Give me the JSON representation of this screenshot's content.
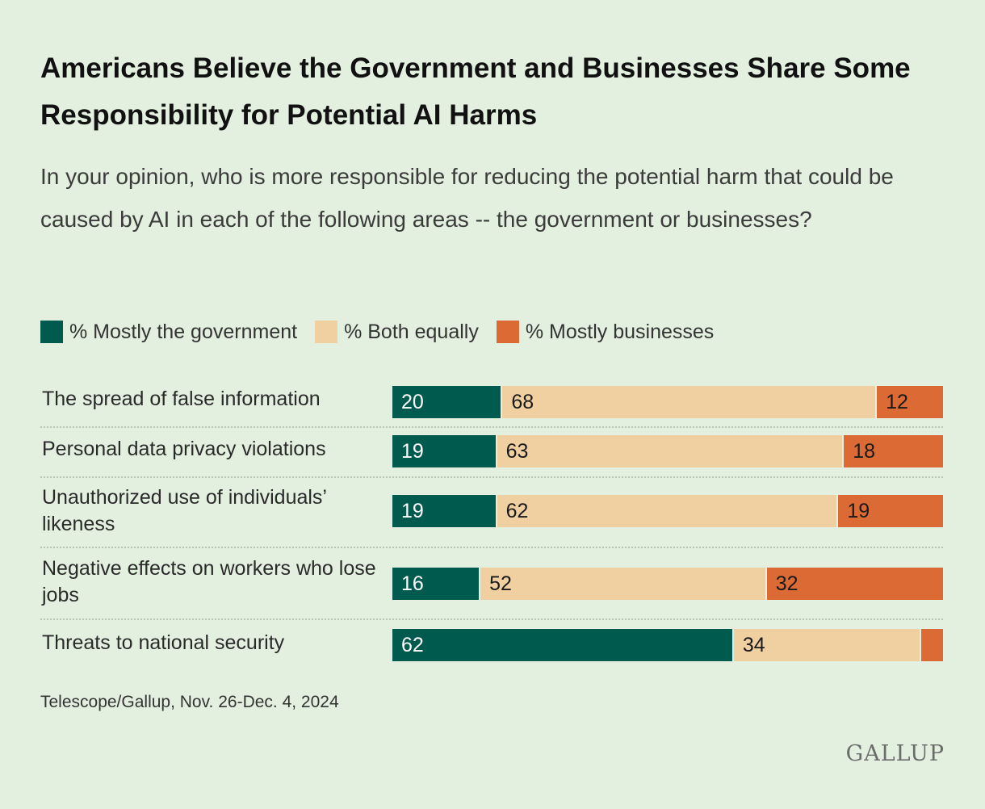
{
  "title": "Americans Believe the Government and Businesses Share Some Responsibility for Potential AI Harms",
  "subtitle": "In your opinion, who is more responsible for reducing the potential harm that could be caused by AI in each of the following areas -- the government or businesses?",
  "source": "Telescope/Gallup, Nov. 26-Dec. 4, 2024",
  "logo": "GALLUP",
  "colors": {
    "government": "#005a4e",
    "both": "#f0d0a1",
    "businesses": "#dc6a34"
  },
  "chart_data": {
    "type": "bar",
    "stacked": true,
    "orientation": "horizontal",
    "categories": [
      "The spread of false information",
      "Personal data privacy violations",
      "Unauthorized use of individuals’ likeness",
      "Negative effects on workers who lose jobs",
      "Threats to national security"
    ],
    "series": [
      {
        "name": "% Mostly the government",
        "values": [
          20,
          19,
          19,
          16,
          62
        ]
      },
      {
        "name": "% Both equally",
        "values": [
          68,
          63,
          62,
          52,
          34
        ]
      },
      {
        "name": "% Mostly businesses",
        "values": [
          12,
          18,
          19,
          32,
          4
        ]
      }
    ],
    "value_labels": [
      [
        "20",
        "19",
        "19",
        "16",
        "62"
      ],
      [
        "68",
        "63",
        "62",
        "52",
        "34"
      ],
      [
        "12",
        "18",
        "19",
        "32",
        ""
      ]
    ],
    "xlim": [
      0,
      100
    ],
    "legend_position": "top"
  }
}
